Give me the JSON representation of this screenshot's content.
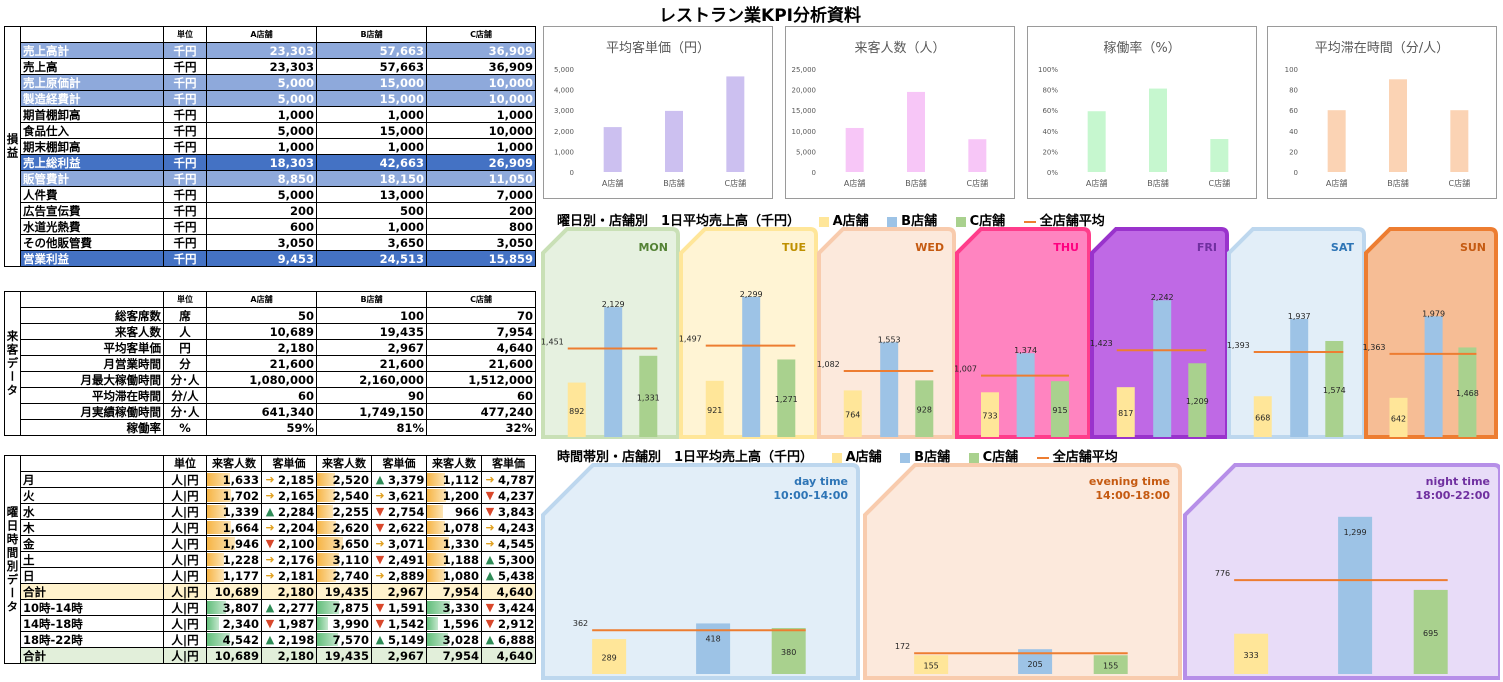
{
  "title": "レストラン業KPI分析資料",
  "pl": {
    "side": "損益",
    "header": [
      "",
      "単位",
      "A店舗",
      "B店舗",
      "C店舗"
    ],
    "rows": [
      {
        "label": "売上高計",
        "unit": "千円",
        "a": "23,303",
        "b": "57,663",
        "c": "36,909",
        "style": "lt"
      },
      {
        "label": "売上高",
        "unit": "千円",
        "a": "23,303",
        "b": "57,663",
        "c": "36,909",
        "style": ""
      },
      {
        "label": "売上原価計",
        "unit": "千円",
        "a": "5,000",
        "b": "15,000",
        "c": "10,000",
        "style": "lt"
      },
      {
        "label": "製造経費計",
        "unit": "千円",
        "a": "5,000",
        "b": "15,000",
        "c": "10,000",
        "style": "lt"
      },
      {
        "label": "期首棚卸高",
        "unit": "千円",
        "a": "1,000",
        "b": "1,000",
        "c": "1,000",
        "style": ""
      },
      {
        "label": "食品仕入",
        "unit": "千円",
        "a": "5,000",
        "b": "15,000",
        "c": "10,000",
        "style": ""
      },
      {
        "label": "期末棚卸高",
        "unit": "千円",
        "a": "1,000",
        "b": "1,000",
        "c": "1,000",
        "style": ""
      },
      {
        "label": "売上総利益",
        "unit": "千円",
        "a": "18,303",
        "b": "42,663",
        "c": "26,909",
        "style": "dk"
      },
      {
        "label": "販管費計",
        "unit": "千円",
        "a": "8,850",
        "b": "18,150",
        "c": "11,050",
        "style": "lt"
      },
      {
        "label": "人件費",
        "unit": "千円",
        "a": "5,000",
        "b": "13,000",
        "c": "7,000",
        "style": ""
      },
      {
        "label": "広告宣伝費",
        "unit": "千円",
        "a": "200",
        "b": "500",
        "c": "200",
        "style": ""
      },
      {
        "label": "水道光熱費",
        "unit": "千円",
        "a": "600",
        "b": "1,000",
        "c": "800",
        "style": ""
      },
      {
        "label": "その他販管費",
        "unit": "千円",
        "a": "3,050",
        "b": "3,650",
        "c": "3,050",
        "style": ""
      },
      {
        "label": "営業利益",
        "unit": "千円",
        "a": "9,453",
        "b": "24,513",
        "c": "15,859",
        "style": "dk"
      }
    ]
  },
  "visit": {
    "side": "来客データ",
    "header": [
      "",
      "単位",
      "A店舗",
      "B店舗",
      "C店舗"
    ],
    "rows": [
      {
        "label": "総客席数",
        "unit": "席",
        "a": "50",
        "b": "100",
        "c": "70"
      },
      {
        "label": "来客人数",
        "unit": "人",
        "a": "10,689",
        "b": "19,435",
        "c": "7,954"
      },
      {
        "label": "平均客単価",
        "unit": "円",
        "a": "2,180",
        "b": "2,967",
        "c": "4,640"
      },
      {
        "label": "月営業時間",
        "unit": "分",
        "a": "21,600",
        "b": "21,600",
        "c": "21,600"
      },
      {
        "label": "月最大稼働時間",
        "unit": "分･人",
        "a": "1,080,000",
        "b": "2,160,000",
        "c": "1,512,000"
      },
      {
        "label": "平均滞在時間",
        "unit": "分/人",
        "a": "60",
        "b": "90",
        "c": "60"
      },
      {
        "label": "月実績稼働時間",
        "unit": "分･人",
        "a": "641,340",
        "b": "1,749,150",
        "c": "477,240"
      },
      {
        "label": "稼働率",
        "unit": "%",
        "a": "59%",
        "b": "81%",
        "c": "32%"
      }
    ]
  },
  "daytime": {
    "side": "曜日時間別データ",
    "header": [
      "",
      "単位",
      "来客人数",
      "客単価",
      "来客人数",
      "客単価",
      "来客人数",
      "客単価"
    ],
    "rows": [
      {
        "label": "月",
        "unit": "人|円",
        "v": [
          "1,633",
          "2,185",
          "2,520",
          "3,379",
          "1,112",
          "4,787"
        ],
        "arr": [
          "r",
          "u",
          "r"
        ],
        "bar": [
          0.43,
          0.33,
          0.34
        ],
        "style": ""
      },
      {
        "label": "火",
        "unit": "人|円",
        "v": [
          "1,702",
          "2,165",
          "2,540",
          "3,621",
          "1,200",
          "4,237"
        ],
        "arr": [
          "r",
          "r",
          "d"
        ],
        "bar": [
          0.45,
          0.34,
          0.36
        ],
        "style": ""
      },
      {
        "label": "水",
        "unit": "人|円",
        "v": [
          "1,339",
          "2,284",
          "2,255",
          "2,754",
          "966",
          "3,843"
        ],
        "arr": [
          "u",
          "d",
          "d"
        ],
        "bar": [
          0.35,
          0.3,
          0.29
        ],
        "style": ""
      },
      {
        "label": "木",
        "unit": "人|円",
        "v": [
          "1,664",
          "2,204",
          "2,620",
          "2,622",
          "1,078",
          "4,243"
        ],
        "arr": [
          "r",
          "d",
          "r"
        ],
        "bar": [
          0.44,
          0.35,
          0.33
        ],
        "style": ""
      },
      {
        "label": "金",
        "unit": "人|円",
        "v": [
          "1,946",
          "2,100",
          "3,650",
          "3,071",
          "1,330",
          "4,545"
        ],
        "arr": [
          "d",
          "r",
          "r"
        ],
        "bar": [
          0.51,
          0.48,
          0.4
        ],
        "style": ""
      },
      {
        "label": "土",
        "unit": "人|円",
        "v": [
          "1,228",
          "2,176",
          "3,110",
          "2,491",
          "1,188",
          "5,300"
        ],
        "arr": [
          "r",
          "d",
          "u"
        ],
        "bar": [
          0.32,
          0.41,
          0.36
        ],
        "style": ""
      },
      {
        "label": "日",
        "unit": "人|円",
        "v": [
          "1,177",
          "2,181",
          "2,740",
          "2,889",
          "1,080",
          "5,438"
        ],
        "arr": [
          "r",
          "r",
          "u"
        ],
        "bar": [
          0.31,
          0.36,
          0.33
        ],
        "style": ""
      },
      {
        "label": "合計",
        "unit": "人|円",
        "v": [
          "10,689",
          "2,180",
          "19,435",
          "2,967",
          "7,954",
          "4,640"
        ],
        "arr": [
          "",
          "",
          ""
        ],
        "bar": [
          0,
          0,
          0
        ],
        "style": "yl"
      },
      {
        "label": "10時-14時",
        "unit": "人|円",
        "v": [
          "3,807",
          "2,277",
          "7,875",
          "1,591",
          "3,330",
          "3,424"
        ],
        "arr": [
          "u",
          "d",
          "d"
        ],
        "bar": [
          0.36,
          0.41,
          0.42
        ],
        "style": "g"
      },
      {
        "label": "14時-18時",
        "unit": "人|円",
        "v": [
          "2,340",
          "1,987",
          "3,990",
          "1,542",
          "1,596",
          "2,912"
        ],
        "arr": [
          "d",
          "d",
          "d"
        ],
        "bar": [
          0.22,
          0.21,
          0.2
        ],
        "style": "g"
      },
      {
        "label": "18時-22時",
        "unit": "人|円",
        "v": [
          "4,542",
          "2,198",
          "7,570",
          "5,149",
          "3,028",
          "6,888"
        ],
        "arr": [
          "u",
          "u",
          "u"
        ],
        "bar": [
          0.43,
          0.39,
          0.38
        ],
        "style": "g"
      },
      {
        "label": "合計",
        "unit": "人|円",
        "v": [
          "10,689",
          "2,180",
          "19,435",
          "2,967",
          "7,954",
          "4,640"
        ],
        "arr": [
          "",
          "",
          ""
        ],
        "bar": [
          0,
          0,
          0
        ],
        "style": "gr"
      }
    ]
  },
  "colors": {
    "a": "#ffe699",
    "b": "#9dc3e6",
    "c": "#a9d18e",
    "avg": "#ed7d31",
    "bar_orange": "#f4b183",
    "bar_green": "#70ad47"
  },
  "kpi_charts": [
    {
      "title": "平均客単価（円）",
      "categories": [
        "A店舗",
        "B店舗",
        "C店舗"
      ],
      "values": [
        2180,
        2967,
        4640
      ],
      "ylim": [
        0,
        5000
      ],
      "ticks": [
        "0",
        "1,000",
        "2,000",
        "3,000",
        "4,000",
        "5,000"
      ],
      "color": "#ccc0f0"
    },
    {
      "title": "来客人数（人）",
      "categories": [
        "A店舗",
        "B店舗",
        "C店舗"
      ],
      "values": [
        10689,
        19435,
        7954
      ],
      "ylim": [
        0,
        25000
      ],
      "ticks": [
        "0",
        "5,000",
        "10,000",
        "15,000",
        "20,000",
        "25,000"
      ],
      "color": "#f7c6f7"
    },
    {
      "title": "稼働率（%）",
      "categories": [
        "A店舗",
        "B店舗",
        "C店舗"
      ],
      "values": [
        59,
        81,
        32
      ],
      "ylim": [
        0,
        100
      ],
      "ticks": [
        "0%",
        "20%",
        "40%",
        "60%",
        "80%",
        "100%"
      ],
      "color": "#c6f7cf"
    },
    {
      "title": "平均滞在時間（分/人）",
      "categories": [
        "A店舗",
        "B店舗",
        "C店舗"
      ],
      "values": [
        60,
        90,
        60
      ],
      "ylim": [
        0,
        100
      ],
      "ticks": [
        "0",
        "20",
        "40",
        "60",
        "80",
        "100"
      ],
      "color": "#fbd3b4"
    }
  ],
  "legend": {
    "a": "A店舗",
    "b": "B店舗",
    "c": "C店舗",
    "avg": "全店舗平均"
  },
  "chart_data": [
    {
      "type": "bar",
      "title": "曜日別・店舗別　1日平均売上高（千円）",
      "categories": [
        "MON",
        "TUE",
        "WED",
        "THU",
        "FRI",
        "SAT",
        "SUN"
      ],
      "series": [
        {
          "name": "A店舗",
          "values": [
            892,
            921,
            764,
            733,
            817,
            668,
            642
          ]
        },
        {
          "name": "B店舗",
          "values": [
            2129,
            2299,
            1553,
            1374,
            2242,
            1937,
            1979
          ]
        },
        {
          "name": "C店舗",
          "values": [
            1331,
            1271,
            928,
            915,
            1209,
            1574,
            1468
          ]
        },
        {
          "name": "全店舗平均",
          "values": [
            1451,
            1497,
            1082,
            1007,
            1423,
            1393,
            1363
          ]
        }
      ],
      "panel_colors": [
        "#e2efda",
        "#fff2cc",
        "#fbe5d6",
        "#ff6fb5",
        "#b44fe0",
        "#ddebf7",
        "#f4b183"
      ],
      "panel_borders": [
        "#c9e0b6",
        "#ffe699",
        "#f8cbad",
        "#ff3d8b",
        "#9933cc",
        "#bdd7ee",
        "#ed7d31"
      ],
      "label_colors": [
        "#548235",
        "#bf9000",
        "#c55a11",
        "#ff0080",
        "#7030a0",
        "#2e75b6",
        "#c55a11"
      ]
    },
    {
      "type": "bar",
      "title": "時間帯別・店舗別　1日平均売上高（千円）",
      "categories": [
        "day time",
        "evening time",
        "night time"
      ],
      "subtitles": [
        "10:00-14:00",
        "14:00-18:00",
        "18:00-22:00"
      ],
      "series": [
        {
          "name": "A店舗",
          "values": [
            289,
            155,
            333
          ]
        },
        {
          "name": "B店舗",
          "values": [
            418,
            205,
            1299
          ]
        },
        {
          "name": "C店舗",
          "values": [
            380,
            155,
            695
          ]
        },
        {
          "name": "全店舗平均",
          "values": [
            362,
            172,
            776
          ]
        }
      ],
      "panel_colors": [
        "#ddebf7",
        "#fbe5d6",
        "#e4d6f7"
      ],
      "panel_borders": [
        "#bdd7ee",
        "#f8cbad",
        "#b68fe8"
      ],
      "label_colors": [
        "#2e75b6",
        "#c55a11",
        "#7030a0"
      ]
    }
  ]
}
